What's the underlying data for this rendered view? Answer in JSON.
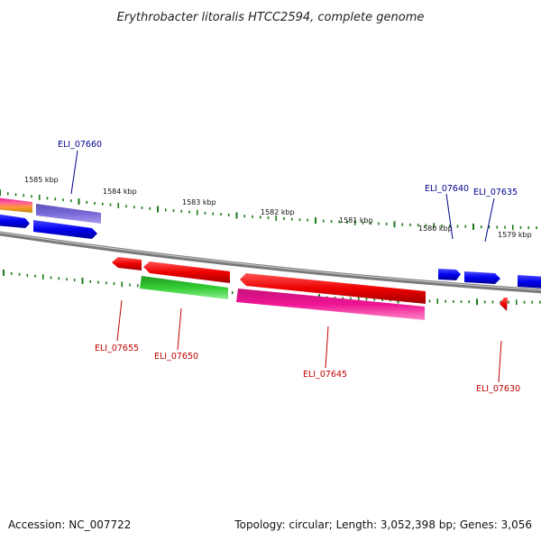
{
  "title": "Erythrobacter litoralis HTCC2594, complete genome",
  "footer": {
    "accession": "Accession: NC_007722",
    "summary": "Topology: circular; Length: 3,052,398 bp; Genes: 3,056"
  },
  "scale_labels": [
    "1585 kbp",
    "1584 kbp",
    "1583 kbp",
    "1582 kbp",
    "1581 kbp",
    "1580 kbp",
    "1579 kbp"
  ],
  "forward_gene_labels": [
    "ELI_07660",
    "ELI_07640",
    "ELI_07635"
  ],
  "reverse_gene_labels": [
    "ELI_07655",
    "ELI_07650",
    "ELI_07645",
    "ELI_07630"
  ],
  "colors": {
    "backbone": "#7a7a7a",
    "tick": "#1a7a1a",
    "forward_label": "#00008b",
    "reverse_label": "#c00000",
    "blue_gene": "#0000ee",
    "purple_gene": "#7a6ad8",
    "red_gene": "#ee0000",
    "green_gene": "#33cc33",
    "magenta_gene": "#ee1493"
  }
}
